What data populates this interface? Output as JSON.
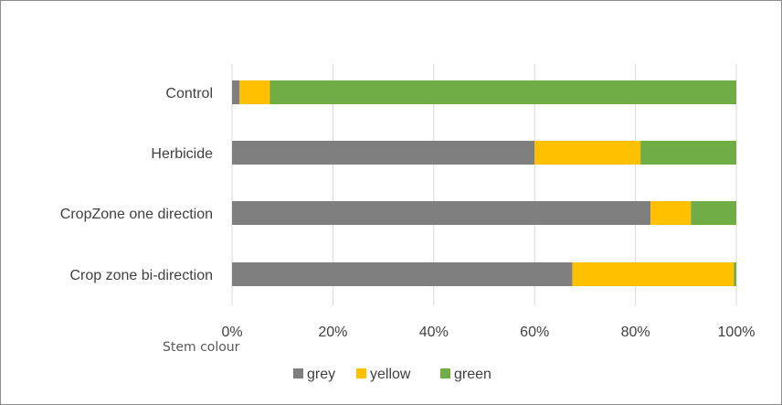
{
  "chart_data": {
    "type": "bar",
    "orientation": "horizontal",
    "stacked": "percent",
    "categories": [
      "Control",
      "Herbicide",
      "CropZone one direction",
      "Crop zone bi-direction"
    ],
    "series": [
      {
        "name": "grey",
        "color": "#7f7f7f",
        "values": [
          1.5,
          60.0,
          83.0,
          67.5
        ]
      },
      {
        "name": "yellow",
        "color": "#ffc000",
        "values": [
          6.0,
          21.0,
          8.0,
          32.0
        ]
      },
      {
        "name": "green",
        "color": "#70ad47",
        "values": [
          92.5,
          19.0,
          9.0,
          0.5
        ]
      }
    ],
    "xticks": [
      "0%",
      "20%",
      "40%",
      "60%",
      "80%",
      "100%"
    ],
    "xlim": [
      0,
      100
    ],
    "xlabel": "Stem colour",
    "title": "",
    "grid": "vertical",
    "legend": "bottom"
  }
}
